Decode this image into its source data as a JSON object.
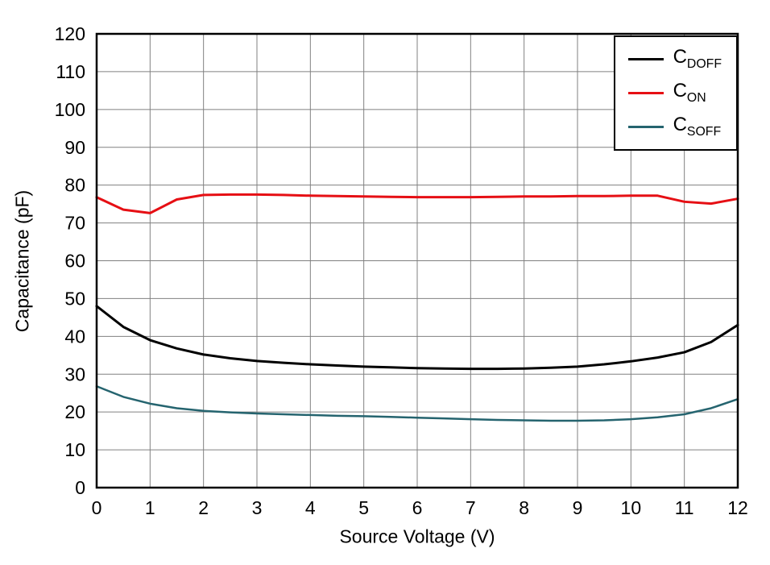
{
  "chart_data": {
    "type": "line",
    "title": "",
    "xlabel": "Source Voltage (V)",
    "ylabel": "Capacitance (pF)",
    "xlim": [
      0,
      12
    ],
    "ylim": [
      0,
      120
    ],
    "xticks": [
      0,
      1,
      2,
      3,
      4,
      5,
      6,
      7,
      8,
      9,
      10,
      11,
      12
    ],
    "yticks": [
      0,
      10,
      20,
      30,
      40,
      50,
      60,
      70,
      80,
      90,
      100,
      110,
      120
    ],
    "grid": true,
    "grid_color": "#808080",
    "border_color": "#000000",
    "legend_position": "top-right",
    "x": [
      0,
      0.5,
      1,
      1.5,
      2,
      2.5,
      3,
      3.5,
      4,
      4.5,
      5,
      5.5,
      6,
      6.5,
      7,
      7.5,
      8,
      8.5,
      9,
      9.5,
      10,
      10.5,
      11,
      11.5,
      12
    ],
    "series": [
      {
        "name": "CDOFF",
        "label_main": "C",
        "label_sub": "DOFF",
        "color": "#000000",
        "width": 3,
        "values": [
          48,
          42.5,
          39,
          36.8,
          35.2,
          34.2,
          33.5,
          33,
          32.6,
          32.3,
          32,
          31.8,
          31.6,
          31.5,
          31.4,
          31.4,
          31.5,
          31.7,
          32,
          32.6,
          33.4,
          34.4,
          35.8,
          38.5,
          43
        ]
      },
      {
        "name": "CON",
        "label_main": "C",
        "label_sub": "ON",
        "color": "#e60f14",
        "width": 3,
        "values": [
          76.8,
          73.5,
          72.6,
          76.2,
          77.4,
          77.5,
          77.5,
          77.4,
          77.2,
          77.1,
          77,
          76.9,
          76.8,
          76.8,
          76.8,
          76.9,
          77,
          77,
          77.1,
          77.1,
          77.2,
          77.2,
          75.6,
          75.1,
          76.4
        ]
      },
      {
        "name": "CSOFF",
        "label_main": "C",
        "label_sub": "SOFF",
        "color": "#25646f",
        "width": 2.5,
        "values": [
          26.8,
          24,
          22.2,
          21,
          20.3,
          19.9,
          19.6,
          19.4,
          19.2,
          19,
          18.9,
          18.7,
          18.5,
          18.3,
          18.1,
          17.9,
          17.8,
          17.7,
          17.7,
          17.8,
          18.1,
          18.6,
          19.4,
          21,
          23.4
        ]
      }
    ]
  }
}
